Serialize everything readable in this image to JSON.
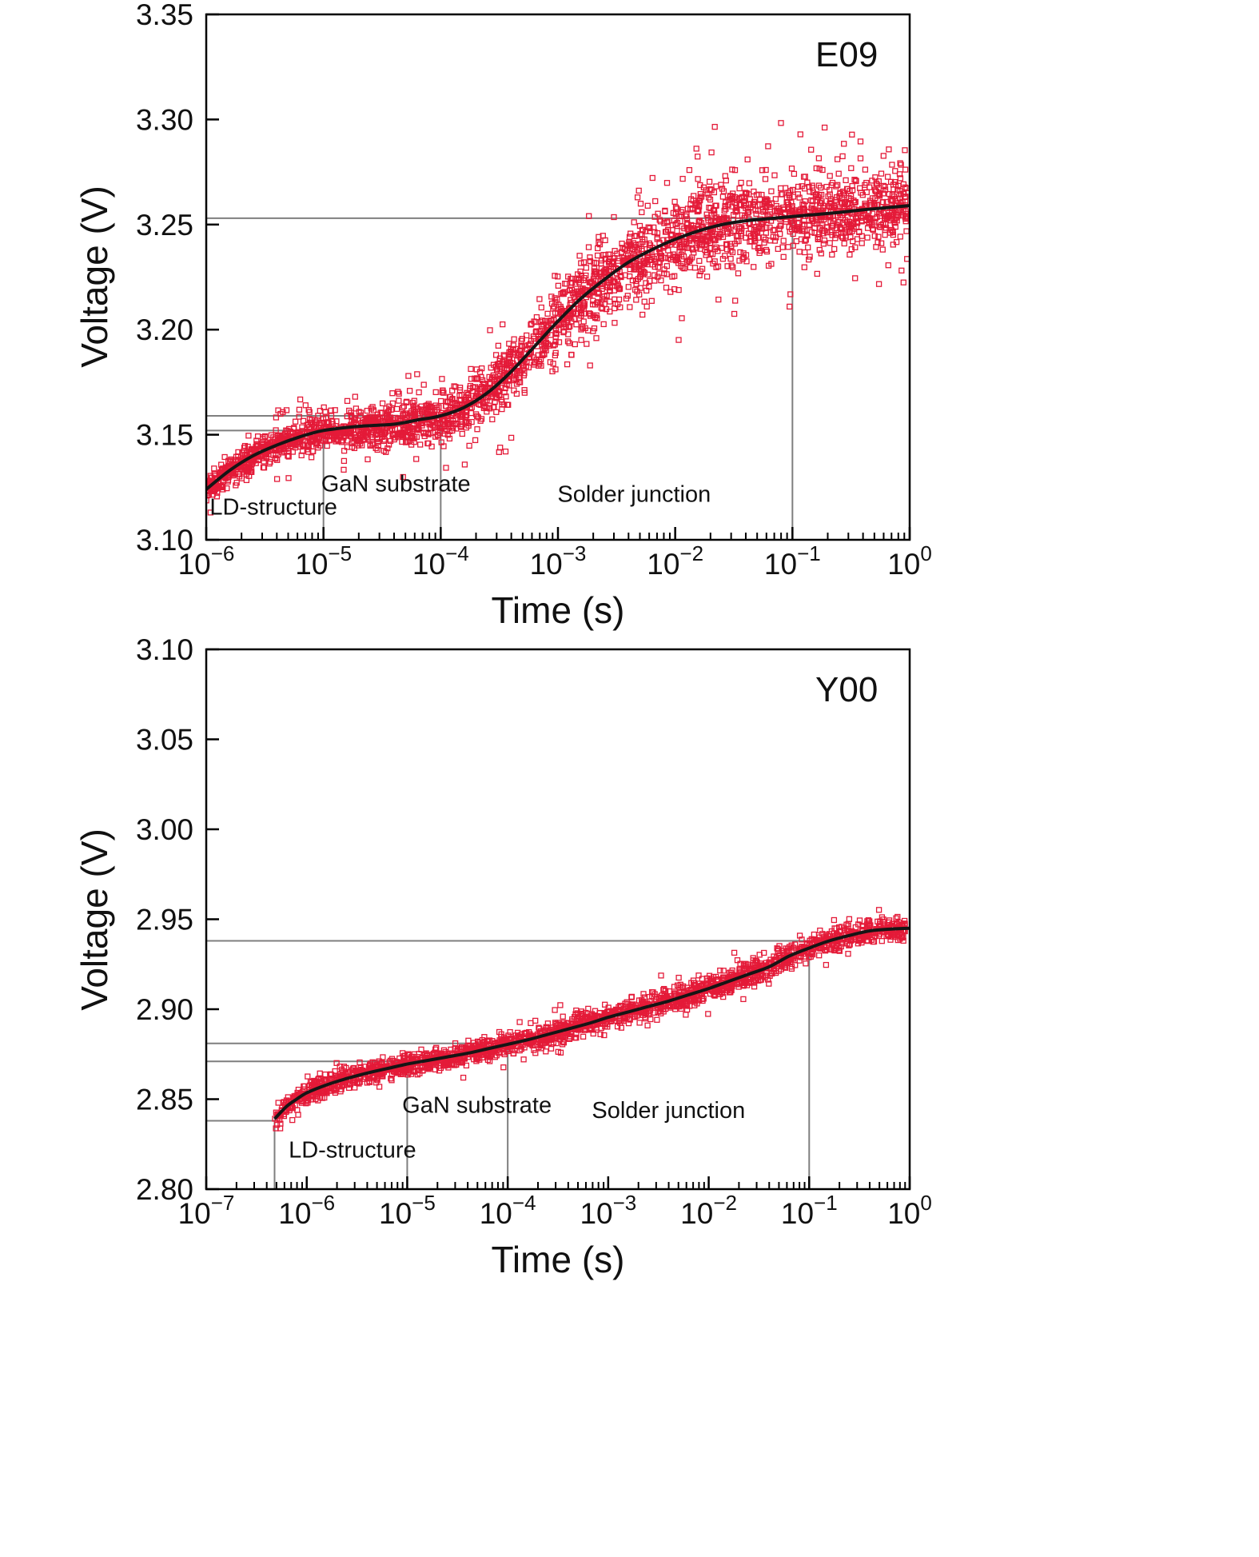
{
  "page": {
    "background": "#ffffff"
  },
  "chart_data": [
    {
      "id": "E09",
      "type": "scatter",
      "panel_label": "E09",
      "xlabel": "Time (s)",
      "ylabel": "Voltage (V)",
      "x_scale": "log",
      "x_range_exp": [
        -6,
        0
      ],
      "y_range": [
        3.1,
        3.35
      ],
      "y_ticks": [
        3.1,
        3.15,
        3.2,
        3.25,
        3.3,
        3.35
      ],
      "x_tick_exps": [
        -6,
        -5,
        -4,
        -3,
        -2,
        -1,
        0
      ],
      "grid": false,
      "fit_curve": {
        "label": "smoothed fit",
        "color": "#151515",
        "width": 4,
        "points": [
          [
            -6.0,
            3.124
          ],
          [
            -5.8,
            3.133
          ],
          [
            -5.6,
            3.14
          ],
          [
            -5.4,
            3.145
          ],
          [
            -5.2,
            3.149
          ],
          [
            -5.0,
            3.152
          ],
          [
            -4.7,
            3.154
          ],
          [
            -4.4,
            3.155
          ],
          [
            -4.2,
            3.157
          ],
          [
            -4.0,
            3.159
          ],
          [
            -3.8,
            3.163
          ],
          [
            -3.6,
            3.17
          ],
          [
            -3.4,
            3.18
          ],
          [
            -3.2,
            3.192
          ],
          [
            -3.0,
            3.204
          ],
          [
            -2.8,
            3.215
          ],
          [
            -2.6,
            3.224
          ],
          [
            -2.4,
            3.232
          ],
          [
            -2.2,
            3.238
          ],
          [
            -2.0,
            3.243
          ],
          [
            -1.8,
            3.247
          ],
          [
            -1.6,
            3.25
          ],
          [
            -1.4,
            3.2518
          ],
          [
            -1.2,
            3.2528
          ],
          [
            -1.0,
            3.2538
          ],
          [
            -0.8,
            3.2548
          ],
          [
            -0.6,
            3.2558
          ],
          [
            -0.4,
            3.257
          ],
          [
            -0.2,
            3.258
          ],
          [
            0.0,
            3.259
          ]
        ]
      },
      "scatter": {
        "label": "measured voltage transient",
        "marker": "open-square",
        "color": "#e41a38",
        "count": 3000,
        "seed": 12345,
        "x_start_exp": -6.0,
        "x_end_exp": -0.02,
        "marker_size": 6,
        "noise_sigma": [
          [
            -6.0,
            0.0028
          ],
          [
            -5.5,
            0.0035
          ],
          [
            -5.0,
            0.0042
          ],
          [
            -4.5,
            0.0055
          ],
          [
            -4.0,
            0.006
          ],
          [
            -3.5,
            0.0075
          ],
          [
            -3.0,
            0.0085
          ],
          [
            -2.5,
            0.0095
          ],
          [
            -2.0,
            0.0105
          ],
          [
            -1.5,
            0.0105
          ],
          [
            -1.0,
            0.0095
          ],
          [
            -0.5,
            0.009
          ],
          [
            0.0,
            0.0085
          ]
        ],
        "outlier_rate": 0.02,
        "outlier_scale": 2.2
      },
      "guides": {
        "color": "#7f7f7f",
        "width": 2,
        "h_lines": [
          {
            "y": 3.253,
            "x_from_exp": -6,
            "x_to_exp": -1
          },
          {
            "y": 3.159,
            "x_from_exp": -6,
            "x_to_exp": -4
          },
          {
            "y": 3.152,
            "x_from_exp": -6,
            "x_to_exp": -5
          }
        ],
        "v_lines": [
          {
            "x_exp": -1,
            "y_from": 3.1,
            "y_to": 3.253
          },
          {
            "x_exp": -4,
            "y_from": 3.1,
            "y_to": 3.159
          },
          {
            "x_exp": -5,
            "y_from": 3.1,
            "y_to": 3.152
          }
        ]
      },
      "annotations": [
        {
          "text": "LD-structure",
          "x_exp": -5.97,
          "y": 3.112,
          "anchor": "start"
        },
        {
          "text": "GaN substrate",
          "x_exp": -5.02,
          "y": 3.123,
          "anchor": "start"
        },
        {
          "text": "Solder junction",
          "x_exp": -2.35,
          "y": 3.118,
          "anchor": "middle"
        }
      ]
    },
    {
      "id": "Y00",
      "type": "scatter",
      "panel_label": "Y00",
      "xlabel": "Time (s)",
      "ylabel": "Voltage (V)",
      "x_scale": "log",
      "x_range_exp": [
        -7,
        0
      ],
      "y_range": [
        2.8,
        3.1
      ],
      "y_ticks": [
        2.8,
        2.85,
        2.9,
        2.95,
        3.0,
        3.05,
        3.1
      ],
      "x_tick_exps": [
        -7,
        -6,
        -5,
        -4,
        -3,
        -2,
        -1,
        0
      ],
      "grid": false,
      "fit_curve": {
        "label": "smoothed fit",
        "color": "#151515",
        "width": 4,
        "points": [
          [
            -6.32,
            2.839
          ],
          [
            -6.2,
            2.846
          ],
          [
            -6.1,
            2.85
          ],
          [
            -6.0,
            2.8535
          ],
          [
            -5.8,
            2.858
          ],
          [
            -5.6,
            2.8615
          ],
          [
            -5.4,
            2.8645
          ],
          [
            -5.2,
            2.867
          ],
          [
            -5.0,
            2.8695
          ],
          [
            -4.8,
            2.8715
          ],
          [
            -4.6,
            2.8735
          ],
          [
            -4.4,
            2.8755
          ],
          [
            -4.2,
            2.878
          ],
          [
            -4.0,
            2.8805
          ],
          [
            -3.8,
            2.883
          ],
          [
            -3.6,
            2.886
          ],
          [
            -3.4,
            2.889
          ],
          [
            -3.2,
            2.892
          ],
          [
            -3.0,
            2.8955
          ],
          [
            -2.8,
            2.8985
          ],
          [
            -2.6,
            2.9015
          ],
          [
            -2.4,
            2.9045
          ],
          [
            -2.2,
            2.908
          ],
          [
            -2.0,
            2.9115
          ],
          [
            -1.8,
            2.9155
          ],
          [
            -1.6,
            2.9195
          ],
          [
            -1.4,
            2.9235
          ],
          [
            -1.2,
            2.9295
          ],
          [
            -1.0,
            2.934
          ],
          [
            -0.8,
            2.938
          ],
          [
            -0.6,
            2.941
          ],
          [
            -0.4,
            2.9435
          ],
          [
            -0.2,
            2.9445
          ],
          [
            0.0,
            2.945
          ]
        ]
      },
      "scatter": {
        "label": "measured voltage transient",
        "marker": "open-square",
        "color": "#e41a38",
        "count": 2200,
        "seed": 67890,
        "x_start_exp": -6.32,
        "x_end_exp": -0.04,
        "marker_size": 6,
        "noise_sigma": [
          [
            -6.32,
            0.0025
          ],
          [
            -6.0,
            0.003
          ],
          [
            -5.0,
            0.003
          ],
          [
            -4.0,
            0.0032
          ],
          [
            -3.0,
            0.0035
          ],
          [
            -2.0,
            0.0035
          ],
          [
            -1.0,
            0.0035
          ],
          [
            0.0,
            0.0032
          ]
        ],
        "outlier_rate": 0.012,
        "outlier_scale": 2.0
      },
      "guides": {
        "color": "#7f7f7f",
        "width": 2,
        "h_lines": [
          {
            "y": 2.938,
            "x_from_exp": -7,
            "x_to_exp": -1
          },
          {
            "y": 2.881,
            "x_from_exp": -7,
            "x_to_exp": -4
          },
          {
            "y": 2.871,
            "x_from_exp": -7,
            "x_to_exp": -5
          },
          {
            "y": 2.838,
            "x_from_exp": -7,
            "x_to_exp": -6.32
          }
        ],
        "v_lines": [
          {
            "x_exp": -1,
            "y_from": 2.8,
            "y_to": 2.938
          },
          {
            "x_exp": -4,
            "y_from": 2.8,
            "y_to": 2.881
          },
          {
            "x_exp": -5,
            "y_from": 2.8,
            "y_to": 2.871
          },
          {
            "x_exp": -6.32,
            "y_from": 2.8,
            "y_to": 2.838
          }
        ]
      },
      "annotations": [
        {
          "text": "LD-structure",
          "x_exp": -6.18,
          "y": 2.8175,
          "anchor": "start"
        },
        {
          "text": "GaN substrate",
          "x_exp": -5.05,
          "y": 2.8425,
          "anchor": "start"
        },
        {
          "text": "Solder junction",
          "x_exp": -2.4,
          "y": 2.8395,
          "anchor": "middle"
        }
      ]
    }
  ]
}
